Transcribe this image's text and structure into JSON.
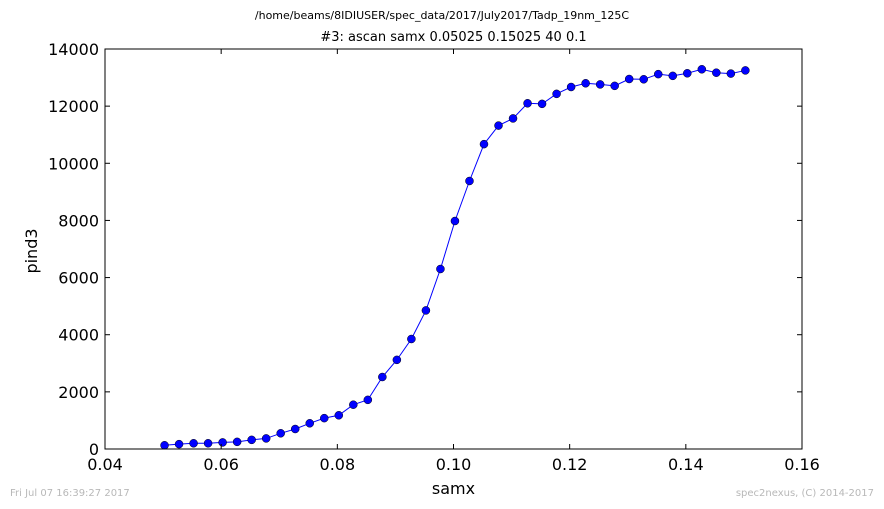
{
  "header": {
    "suptitle": "/home/beams/8IDIUSER/spec_data/2017/July2017/Tadp_19nm_125C"
  },
  "footer": {
    "timestamp": "Fri Jul 07 16:39:27 2017",
    "credit": "spec2nexus, (C) 2014-2017"
  },
  "chart_data": {
    "type": "line",
    "title": "#3: ascan  samx 0.05025 0.15025  40 0.1",
    "xlabel": "samx",
    "ylabel": "pind3",
    "xlim": [
      0.04,
      0.16
    ],
    "ylim": [
      0,
      14000
    ],
    "xticks": [
      0.04,
      0.06,
      0.08,
      0.1,
      0.12,
      0.14,
      0.16
    ],
    "xtick_labels": [
      "0.04",
      "0.06",
      "0.08",
      "0.10",
      "0.12",
      "0.14",
      "0.16"
    ],
    "yticks": [
      0,
      2000,
      4000,
      6000,
      8000,
      10000,
      12000,
      14000
    ],
    "ytick_labels": [
      "0",
      "2000",
      "4000",
      "6000",
      "8000",
      "10000",
      "12000",
      "14000"
    ],
    "grid": false,
    "legend": "none",
    "color": "#0000ff",
    "marker": "circle",
    "x": [
      0.05025,
      0.05275,
      0.05525,
      0.05775,
      0.06025,
      0.06275,
      0.06525,
      0.06775,
      0.07025,
      0.07275,
      0.07525,
      0.07775,
      0.08025,
      0.08275,
      0.08525,
      0.08775,
      0.09025,
      0.09275,
      0.09525,
      0.09775,
      0.10025,
      0.10275,
      0.10525,
      0.10775,
      0.11025,
      0.11275,
      0.11525,
      0.11775,
      0.12025,
      0.12275,
      0.12525,
      0.12775,
      0.13025,
      0.13275,
      0.13525,
      0.13775,
      0.14025,
      0.14275,
      0.14525,
      0.14775,
      0.15025
    ],
    "y": [
      130,
      170,
      200,
      200,
      230,
      250,
      320,
      370,
      550,
      700,
      900,
      1080,
      1180,
      1550,
      1720,
      2520,
      3120,
      3850,
      4850,
      6300,
      7980,
      9380,
      10670,
      11320,
      11570,
      12100,
      12080,
      12430,
      12670,
      12800,
      12760,
      12710,
      12950,
      12940,
      13120,
      13060,
      13150,
      13290,
      13170,
      13140,
      13250
    ]
  }
}
